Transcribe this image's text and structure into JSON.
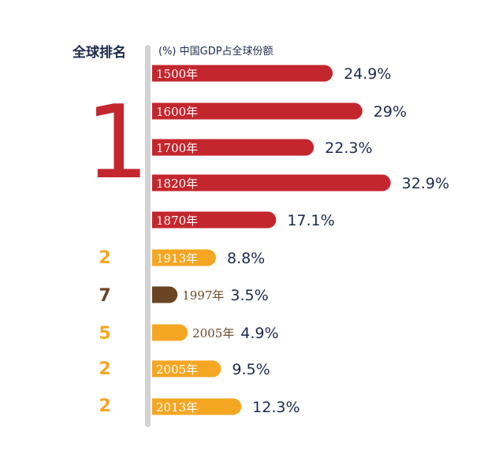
{
  "header": {
    "rank_heading": "全球排名",
    "title": "(%) 中国GDP占全球份额"
  },
  "big_rank": "1",
  "colors": {
    "red": "#c4262e",
    "orange": "#f5a623",
    "brown": "#6b4423",
    "value_text": "#1d2a4d",
    "axis": "#d2d2d2"
  },
  "chart_data": {
    "type": "bar",
    "title": "(%) 中国GDP占全球份额",
    "categories": [
      "1500年",
      "1600年",
      "1700年",
      "1820年",
      "1870年",
      "1913年",
      "1997年",
      "2005年",
      "2005年",
      "2013年"
    ],
    "values": [
      24.9,
      29,
      22.3,
      32.9,
      17.1,
      8.8,
      3.5,
      4.9,
      9.5,
      12.3
    ],
    "value_labels": [
      "24.9%",
      "29%",
      "22.3%",
      "32.9%",
      "17.1%",
      "8.8%",
      "3.5%",
      "4.9%",
      "9.5%",
      "12.3%"
    ],
    "ranks": [
      "1",
      "1",
      "1",
      "1",
      "1",
      "2",
      "7",
      "5",
      "2",
      "2"
    ],
    "bar_colors": [
      "red",
      "red",
      "red",
      "red",
      "red",
      "orange",
      "brown",
      "orange",
      "orange",
      "orange"
    ],
    "year_label_inside": [
      true,
      true,
      true,
      true,
      true,
      true,
      false,
      false,
      true,
      true
    ],
    "orientation": "horizontal"
  },
  "rank_labels": [
    {
      "text": "2",
      "color": "orange"
    },
    {
      "text": "7",
      "color": "brown"
    },
    {
      "text": "5",
      "color": "orange"
    },
    {
      "text": "2",
      "color": "orange"
    },
    {
      "text": "2",
      "color": "orange"
    }
  ]
}
